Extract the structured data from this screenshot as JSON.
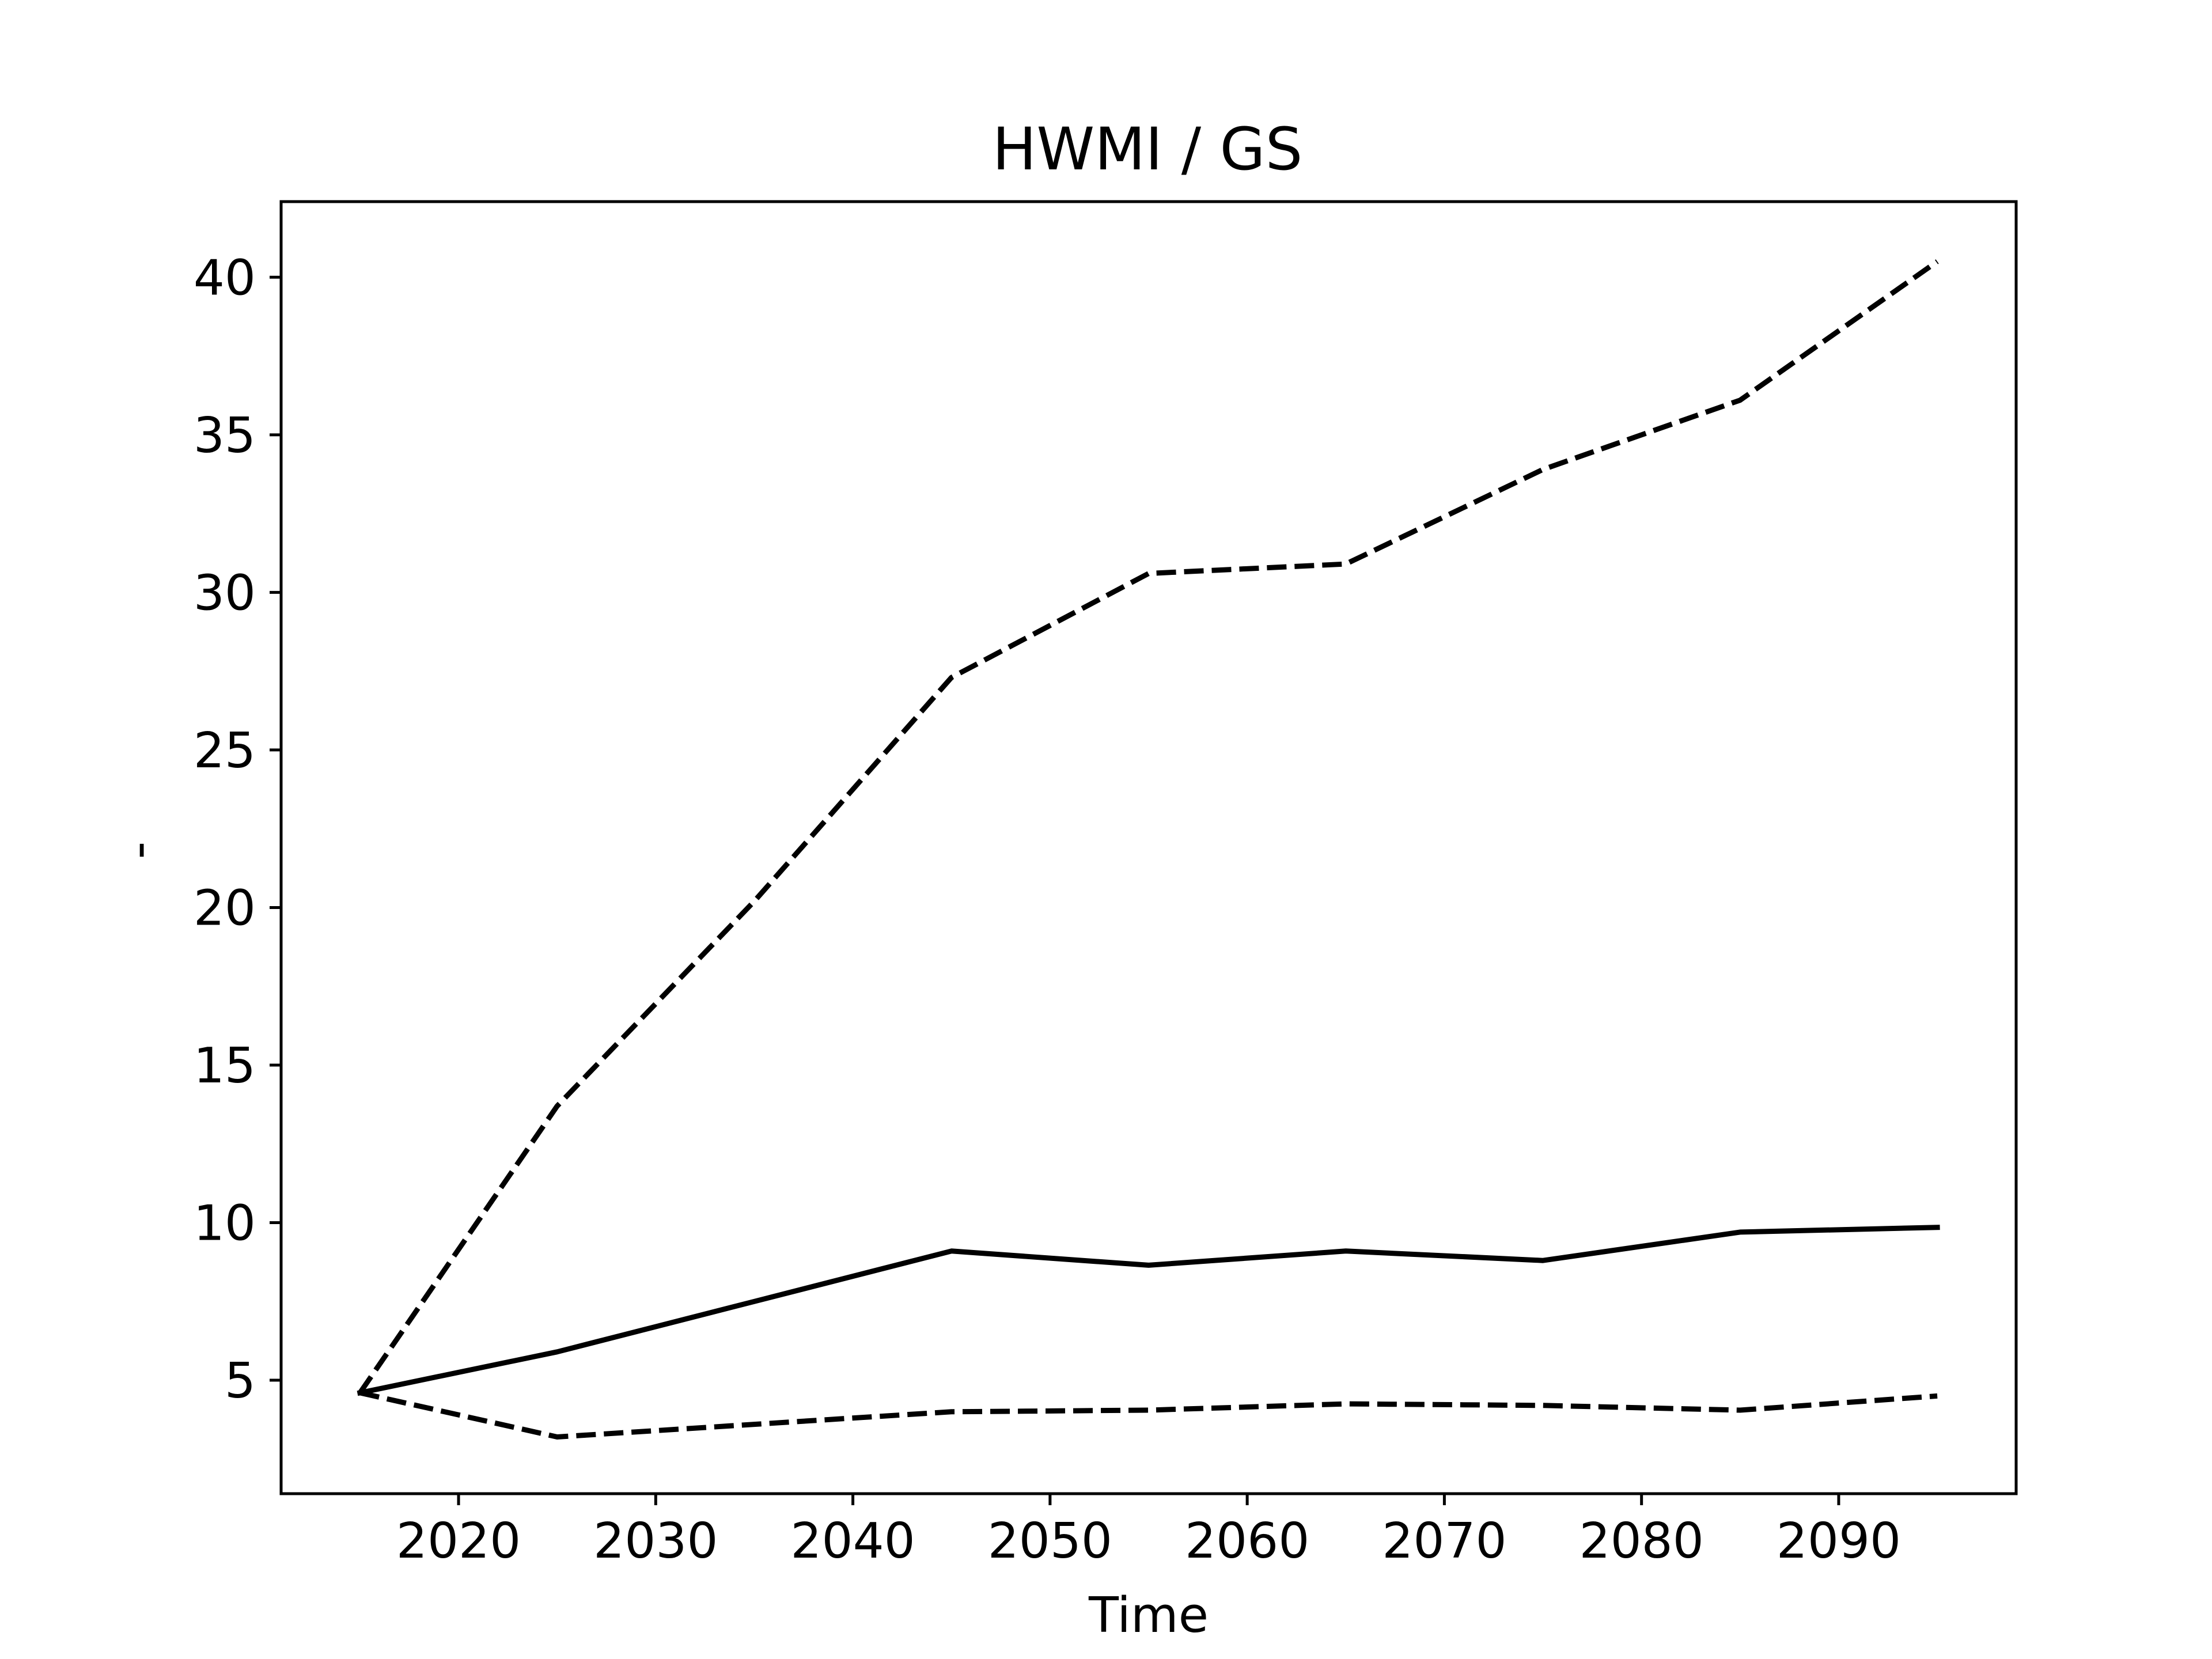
{
  "chart_data": {
    "type": "line",
    "title": "HWMI / GS",
    "xlabel": "Time",
    "ylabel": "-",
    "xlim": [
      2011,
      2099
    ],
    "ylim": [
      1.4,
      42.4
    ],
    "xticks": [
      2020,
      2030,
      2040,
      2050,
      2060,
      2070,
      2080,
      2090
    ],
    "yticks": [
      5,
      10,
      15,
      20,
      25,
      30,
      35,
      40
    ],
    "grid": false,
    "legend": "none",
    "x": [
      2015,
      2025,
      2035,
      2045,
      2055,
      2065,
      2075,
      2085,
      2095
    ],
    "series": [
      {
        "style": "solid",
        "color": "#000000",
        "values": [
          4.6,
          5.9,
          7.5,
          9.1,
          8.65,
          9.1,
          8.8,
          9.7,
          9.85
        ]
      },
      {
        "style": "dashed",
        "color": "#000000",
        "values": [
          4.6,
          13.7,
          20.2,
          27.3,
          30.6,
          30.9,
          33.9,
          36.1,
          40.5
        ]
      },
      {
        "style": "dashed",
        "color": "#000000",
        "values": [
          4.6,
          3.2,
          3.6,
          4.0,
          4.05,
          4.25,
          4.2,
          4.05,
          4.5
        ]
      }
    ]
  }
}
